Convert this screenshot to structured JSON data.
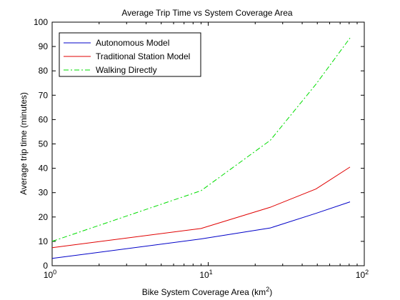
{
  "chart_data": {
    "type": "line",
    "title": "Average Trip Time vs System Coverage Area",
    "xlabel": "Bike System Coverage Area (km",
    "xlabel_sup": "2",
    "xlabel_suffix": ")",
    "ylabel": "Average trip time (minutes)",
    "xscale": "log",
    "xlim": [
      1,
      100
    ],
    "ylim": [
      0,
      100
    ],
    "x_ticks": [
      1,
      10,
      100
    ],
    "x_tick_labels": [
      {
        "base": "10",
        "exp": "0"
      },
      {
        "base": "10",
        "exp": "1"
      },
      {
        "base": "10",
        "exp": "2"
      }
    ],
    "y_ticks": [
      0,
      10,
      20,
      30,
      40,
      50,
      60,
      70,
      80,
      90,
      100
    ],
    "y_tick_labels": [
      "0",
      "10",
      "20",
      "30",
      "40",
      "50",
      "60",
      "70",
      "80",
      "90",
      "100"
    ],
    "grid": false,
    "legend_position": "top-left",
    "series": [
      {
        "name": "Autonomous Model",
        "color": "#0000c8",
        "style": "solid",
        "x": [
          1,
          9,
          25,
          49,
          81
        ],
        "y": [
          3,
          11,
          15.5,
          21.5,
          26.2
        ]
      },
      {
        "name": "Traditional Station Model",
        "color": "#e00000",
        "style": "solid",
        "x": [
          1,
          9,
          25,
          49,
          81
        ],
        "y": [
          7.4,
          15.3,
          24,
          31.5,
          40.5
        ]
      },
      {
        "name": "Walking Directly",
        "color": "#00dd00",
        "style": "dashdot",
        "x": [
          1,
          9,
          25,
          49,
          81
        ],
        "y": [
          10,
          30.8,
          51.5,
          74.5,
          93.5
        ]
      }
    ]
  }
}
